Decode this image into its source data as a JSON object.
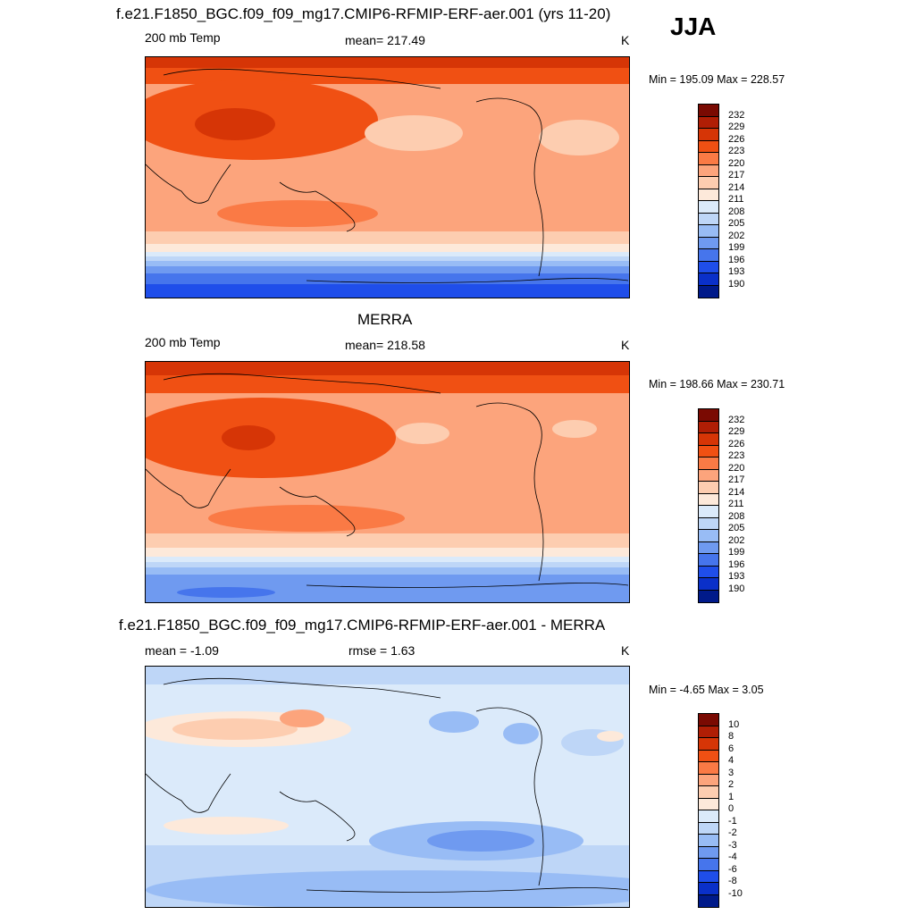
{
  "season": "JJA",
  "panels": [
    {
      "title": "f.e21.F1850_BGC.f09_f09_mg17.CMIP6-RFMIP-ERF-aer.001 (yrs 11-20)",
      "left_label": "200 mb Temp",
      "center_label": "mean= 217.49",
      "units": "K",
      "minmax": "Min = 195.09 Max = 228.57",
      "colorbar": {
        "labels": [
          "232",
          "229",
          "226",
          "223",
          "220",
          "217",
          "214",
          "211",
          "208",
          "205",
          "202",
          "199",
          "196",
          "193",
          "190"
        ],
        "colors": [
          "#7a0a02",
          "#b01e05",
          "#d63506",
          "#f05013",
          "#fa7a45",
          "#fca47c",
          "#fdcdb0",
          "#fde9da",
          "#dbeafa",
          "#bed6f7",
          "#98bcf5",
          "#6f9af0",
          "#4675ec",
          "#1f4eea",
          "#0a30c9",
          "#001a8a"
        ]
      }
    },
    {
      "title": "MERRA",
      "left_label": "200 mb Temp",
      "center_label": "mean= 218.58",
      "units": "K",
      "minmax": "Min = 198.66 Max = 230.71",
      "colorbar": {
        "labels": [
          "232",
          "229",
          "226",
          "223",
          "220",
          "217",
          "214",
          "211",
          "208",
          "205",
          "202",
          "199",
          "196",
          "193",
          "190"
        ],
        "colors": [
          "#7a0a02",
          "#b01e05",
          "#d63506",
          "#f05013",
          "#fa7a45",
          "#fca47c",
          "#fdcdb0",
          "#fde9da",
          "#dbeafa",
          "#bed6f7",
          "#98bcf5",
          "#6f9af0",
          "#4675ec",
          "#1f4eea",
          "#0a30c9",
          "#001a8a"
        ]
      }
    },
    {
      "title": "f.e21.F1850_BGC.f09_f09_mg17.CMIP6-RFMIP-ERF-aer.001 - MERRA",
      "left_label": "mean =  -1.09",
      "center_label": "rmse =   1.63",
      "units": "K",
      "minmax": "Min =  -4.65 Max =   3.05",
      "colorbar": {
        "labels": [
          "10",
          "8",
          "6",
          "4",
          "3",
          "2",
          "1",
          "0",
          "-1",
          "-2",
          "-3",
          "-4",
          "-6",
          "-8",
          "-10"
        ],
        "colors": [
          "#7a0a02",
          "#b01e05",
          "#d63506",
          "#f05013",
          "#fa7a45",
          "#fca47c",
          "#fdcdb0",
          "#fde9da",
          "#dbeafa",
          "#bed6f7",
          "#98bcf5",
          "#6f9af0",
          "#4675ec",
          "#1f4eea",
          "#0a30c9",
          "#001a8a"
        ]
      }
    }
  ]
}
